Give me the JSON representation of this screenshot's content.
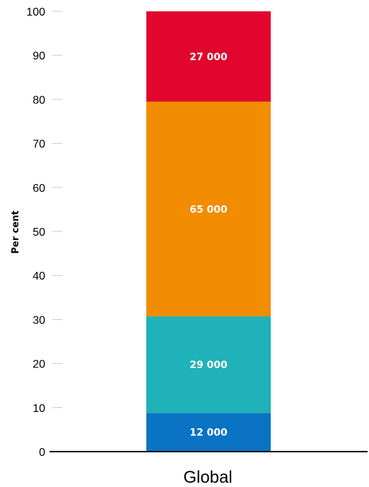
{
  "chart_data": {
    "type": "bar",
    "stacked": true,
    "categories": [
      "Global"
    ],
    "ylabel": "Per cent",
    "ylim": [
      0,
      100
    ],
    "yticks": [
      0,
      10,
      20,
      30,
      40,
      50,
      60,
      70,
      80,
      90,
      100
    ],
    "grid": false,
    "segments": [
      {
        "start": 0,
        "end": 8.8,
        "label": "12 000",
        "color": "#0a73c4"
      },
      {
        "start": 8.8,
        "end": 30.7,
        "label": "29 000",
        "color": "#1fb2b8"
      },
      {
        "start": 30.7,
        "end": 79.5,
        "label": "65 000",
        "color": "#f28c00"
      },
      {
        "start": 79.5,
        "end": 100,
        "label": "27 000",
        "color": "#e0062d"
      }
    ]
  }
}
